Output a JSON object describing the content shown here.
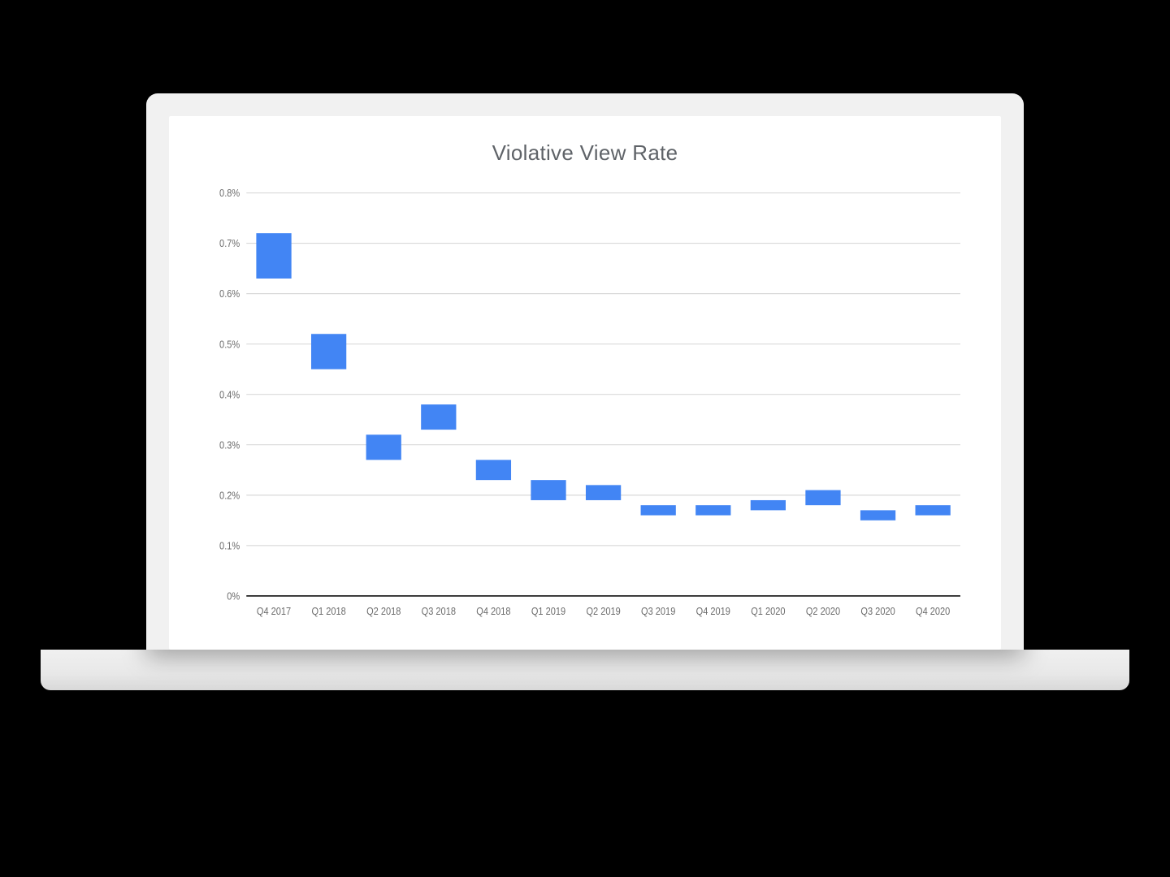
{
  "page_background": "#000000",
  "laptop": {
    "bezel_color": "#f1f1f1",
    "base_gradient_top": "#f0f0f0",
    "base_gradient_bottom": "#d8d8d8"
  },
  "chart": {
    "type": "floating-bar-range",
    "title": "Violative View Rate",
    "title_color": "#5f6368",
    "title_fontsize": 26,
    "background_color": "#ffffff",
    "grid_color": "#d9d9d9",
    "axis_color": "#202020",
    "tick_label_color": "#6b6b6b",
    "tick_label_fontsize": 11,
    "bar_color": "#4285f4",
    "bar_width_ratio": 0.64,
    "y_axis": {
      "min": 0,
      "max": 0.8,
      "tick_step": 0.1,
      "tick_labels": [
        "0%",
        "0.1%",
        "0.2%",
        "0.3%",
        "0.4%",
        "0.5%",
        "0.6%",
        "0.7%",
        "0.8%"
      ]
    },
    "categories": [
      "Q4 2017",
      "Q1 2018",
      "Q2 2018",
      "Q3 2018",
      "Q4 2018",
      "Q1 2019",
      "Q2 2019",
      "Q3 2019",
      "Q4 2019",
      "Q1 2020",
      "Q2 2020",
      "Q3 2020",
      "Q4 2020"
    ],
    "series": [
      {
        "label": "Q4 2017",
        "low": 0.63,
        "high": 0.72
      },
      {
        "label": "Q1 2018",
        "low": 0.45,
        "high": 0.52
      },
      {
        "label": "Q2 2018",
        "low": 0.27,
        "high": 0.32
      },
      {
        "label": "Q3 2018",
        "low": 0.33,
        "high": 0.38
      },
      {
        "label": "Q4 2018",
        "low": 0.23,
        "high": 0.27
      },
      {
        "label": "Q1 2019",
        "low": 0.19,
        "high": 0.23
      },
      {
        "label": "Q2 2019",
        "low": 0.19,
        "high": 0.22
      },
      {
        "label": "Q3 2019",
        "low": 0.16,
        "high": 0.18
      },
      {
        "label": "Q4 2019",
        "low": 0.16,
        "high": 0.18
      },
      {
        "label": "Q1 2020",
        "low": 0.17,
        "high": 0.19
      },
      {
        "label": "Q2 2020",
        "low": 0.18,
        "high": 0.21
      },
      {
        "label": "Q3 2020",
        "low": 0.15,
        "high": 0.17
      },
      {
        "label": "Q4 2020",
        "low": 0.16,
        "high": 0.18
      }
    ]
  }
}
